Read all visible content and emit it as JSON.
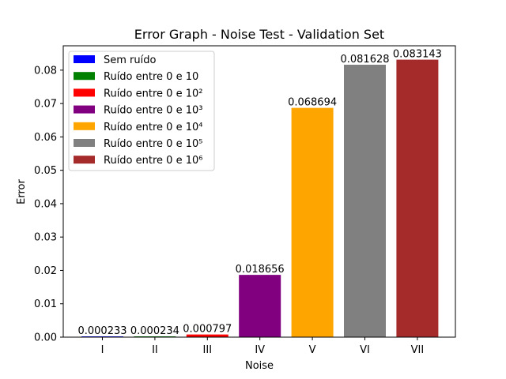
{
  "chart_data": {
    "type": "bar",
    "title": "Error Graph - Noise Test - Validation Set",
    "xlabel": "Noise",
    "ylabel": "Error",
    "categories": [
      "I",
      "II",
      "III",
      "IV",
      "V",
      "VI",
      "VII"
    ],
    "values": [
      0.000233,
      0.000234,
      0.000797,
      0.018656,
      0.068694,
      0.081628,
      0.083143
    ],
    "value_labels": [
      "0.000233",
      "0.000234",
      "0.000797",
      "0.018656",
      "0.068694",
      "0.081628",
      "0.083143"
    ],
    "colors": [
      "#0000ff",
      "#008000",
      "#ff0000",
      "#800080",
      "#ffa500",
      "#808080",
      "#a52a2a"
    ],
    "legend": [
      "Sem ruído",
      "Ruído entre 0 e 10",
      "Ruído entre 0 e 10²",
      "Ruído entre 0 e 10³",
      "Ruído entre 0 e 10⁴",
      "Ruído entre 0 e 10⁵",
      "Ruído entre 0 e 10⁶"
    ],
    "legend_position": "top-left",
    "ylim": [
      0,
      0.0873
    ],
    "yticks": [
      0.0,
      0.01,
      0.02,
      0.03,
      0.04,
      0.05,
      0.06,
      0.07,
      0.08
    ],
    "ytick_labels": [
      "0.00",
      "0.01",
      "0.02",
      "0.03",
      "0.04",
      "0.05",
      "0.06",
      "0.07",
      "0.08"
    ],
    "grid": false
  }
}
